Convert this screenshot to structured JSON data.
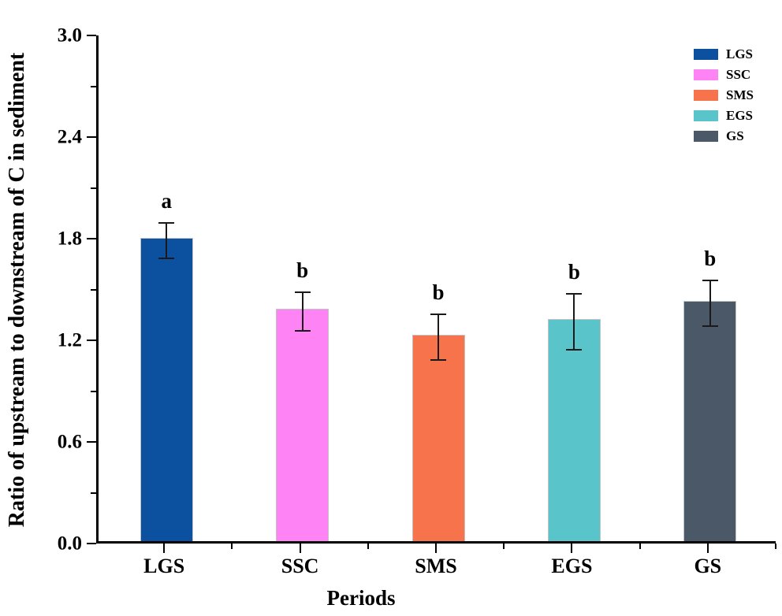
{
  "chart_data": {
    "type": "bar",
    "title": "",
    "xlabel": "Periods",
    "ylabel": "Ratio of upstream to downstream of C in sediment",
    "categories": [
      "LGS",
      "SSC",
      "SMS",
      "EGS",
      "GS"
    ],
    "values": [
      1.79,
      1.37,
      1.22,
      1.31,
      1.42
    ],
    "errors": [
      0.11,
      0.12,
      0.14,
      0.17,
      0.14
    ],
    "sig_letters": [
      "a",
      "b",
      "b",
      "b",
      "b"
    ],
    "bar_colors": [
      "#0B519F",
      "#FE84F6",
      "#F6734B",
      "#5AC4CB",
      "#4A5868"
    ],
    "ylim": [
      0.0,
      3.0
    ],
    "ytick_step": 0.6,
    "yminor_step": 0.3,
    "ytick_labels": [
      "0.0",
      "0.6",
      "1.2",
      "1.8",
      "2.4",
      "3.0"
    ],
    "grid": false,
    "axis_color": "#000000",
    "legend": {
      "position": "top-right",
      "entries": [
        {
          "label": "LGS",
          "color": "#0B519F"
        },
        {
          "label": "SSC",
          "color": "#FE84F6"
        },
        {
          "label": "SMS",
          "color": "#F6734B"
        },
        {
          "label": "EGS",
          "color": "#5AC4CB"
        },
        {
          "label": "GS",
          "color": "#4A5868"
        }
      ]
    }
  }
}
